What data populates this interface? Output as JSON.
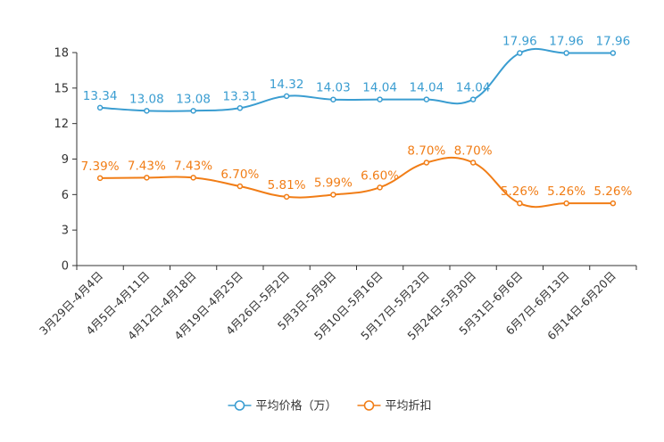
{
  "chart_data": {
    "type": "line",
    "title": "",
    "xlabel": "",
    "ylabel": "",
    "ylim": [
      0,
      18
    ],
    "yticks": [
      "0",
      "3",
      "6",
      "9",
      "12",
      "15",
      "18"
    ],
    "categories": [
      "3月29日-4月4日",
      "4月5日-4月11日",
      "4月12日-4月18日",
      "4月19日-4月25日",
      "4月26日-5月2日",
      "5月3日-5月9日",
      "5月10日-5月16日",
      "5月17日-5月23日",
      "5月24日-5月30日",
      "5月31日-6月6日",
      "6月7日-6月13日",
      "6月14日-6月20日"
    ],
    "series": [
      {
        "name": "平均价格（万）",
        "color": "#3a9dd1",
        "values": [
          13.34,
          13.08,
          13.08,
          13.31,
          14.32,
          14.03,
          14.04,
          14.04,
          14.04,
          17.96,
          17.96,
          17.96
        ],
        "labels": [
          "13.34",
          "13.08",
          "13.08",
          "13.31",
          "14.32",
          "14.03",
          "14.04",
          "14.04",
          "14.04",
          "17.96",
          "17.96",
          "17.96"
        ]
      },
      {
        "name": "平均折扣",
        "color": "#f17d16",
        "values": [
          7.39,
          7.43,
          7.43,
          6.7,
          5.81,
          5.99,
          6.6,
          8.7,
          8.7,
          5.26,
          5.26,
          5.26
        ],
        "labels": [
          "7.39%",
          "7.43%",
          "7.43%",
          "6.70%",
          "5.81%",
          "5.99%",
          "6.60%",
          "8.70%",
          "8.70%",
          "5.26%",
          "5.26%",
          "5.26%"
        ]
      }
    ],
    "legend_position": "bottom-center",
    "grid": false
  }
}
